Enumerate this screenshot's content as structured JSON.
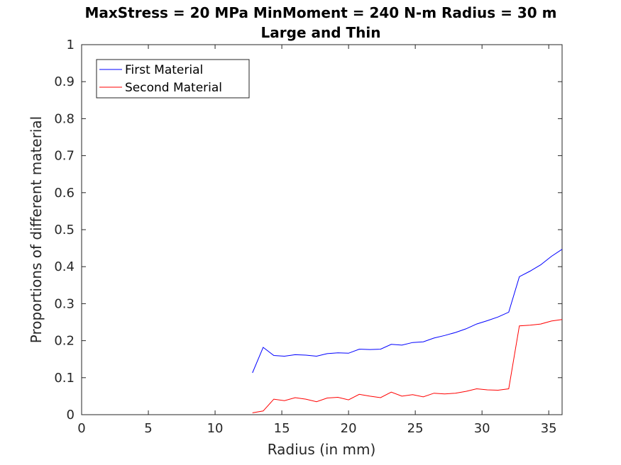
{
  "chart_data": {
    "type": "line",
    "title": "MaxStress = 20 MPa MinMoment = 240 N-m Radius = 30 m",
    "subtitle": "Large and Thin",
    "xlabel": "Radius (in mm)",
    "ylabel": "Proportions of different material",
    "xlim": [
      0,
      36
    ],
    "ylim": [
      0,
      1
    ],
    "xticks": [
      0,
      5,
      10,
      15,
      20,
      25,
      30,
      35
    ],
    "yticks": [
      0,
      0.1,
      0.2,
      0.3,
      0.4,
      0.5,
      0.6,
      0.7,
      0.8,
      0.9,
      1
    ],
    "grid": false,
    "legend_position": "top-left",
    "series": [
      {
        "name": "First Material",
        "color": "#0000ff",
        "x": [
          12.8,
          13.6,
          14.4,
          15.2,
          16.0,
          16.8,
          17.6,
          18.4,
          19.2,
          20.0,
          20.8,
          21.6,
          22.4,
          23.2,
          24.0,
          24.8,
          25.6,
          26.4,
          27.2,
          28.0,
          28.8,
          29.6,
          30.4,
          31.2,
          32.0,
          32.8,
          33.6,
          34.4,
          35.2,
          36.0
        ],
        "y": [
          0.113,
          0.182,
          0.16,
          0.158,
          0.162,
          0.161,
          0.158,
          0.165,
          0.167,
          0.166,
          0.177,
          0.176,
          0.177,
          0.19,
          0.188,
          0.195,
          0.197,
          0.207,
          0.214,
          0.222,
          0.232,
          0.245,
          0.254,
          0.264,
          0.277,
          0.373,
          0.388,
          0.405,
          0.428,
          0.447
        ]
      },
      {
        "name": "Second Material",
        "color": "#ff0000",
        "x": [
          12.8,
          13.6,
          14.4,
          15.2,
          16.0,
          16.8,
          17.6,
          18.4,
          19.2,
          20.0,
          20.8,
          21.6,
          22.4,
          23.2,
          24.0,
          24.8,
          25.6,
          26.4,
          27.2,
          28.0,
          28.8,
          29.6,
          30.4,
          31.2,
          32.0,
          32.8,
          33.6,
          34.4,
          35.2,
          36.0
        ],
        "y": [
          0.005,
          0.01,
          0.042,
          0.038,
          0.046,
          0.042,
          0.035,
          0.045,
          0.047,
          0.04,
          0.055,
          0.05,
          0.046,
          0.061,
          0.05,
          0.054,
          0.048,
          0.058,
          0.056,
          0.058,
          0.063,
          0.07,
          0.067,
          0.066,
          0.07,
          0.24,
          0.242,
          0.245,
          0.253,
          0.257
        ]
      }
    ]
  }
}
